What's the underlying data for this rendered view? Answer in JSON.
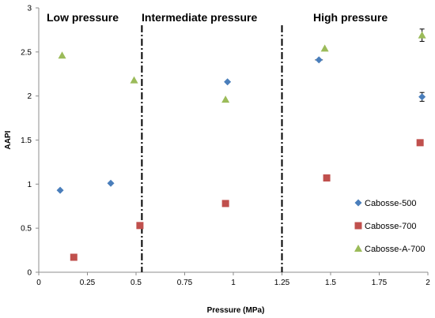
{
  "chart_data": {
    "type": "scatter",
    "xlabel": "Pressure (MPa)",
    "ylabel": "AAPI",
    "xlim": [
      0,
      2
    ],
    "ylim": [
      0,
      3
    ],
    "xticks": [
      "0",
      "0.25",
      "0.5",
      "0.75",
      "1",
      "1.25",
      "1.5",
      "1.75",
      "2"
    ],
    "yticks": [
      "0",
      "0.5",
      "1",
      "1.5",
      "2",
      "2.5",
      "3"
    ],
    "grid": false,
    "legend_position": "bottom-right",
    "region_labels": [
      "Low pressure",
      "Intermediate pressure",
      "High pressure"
    ],
    "region_boundaries": [
      0.53,
      1.25
    ],
    "series": [
      {
        "name": "Cabosse-500",
        "marker": "diamond",
        "color": "#4a7ebb",
        "points": [
          {
            "x": 0.11,
            "y": 0.93
          },
          {
            "x": 0.37,
            "y": 1.01
          },
          {
            "x": 0.97,
            "y": 2.16
          },
          {
            "x": 1.44,
            "y": 2.41,
            "xerr": 0.02
          },
          {
            "x": 1.97,
            "y": 1.99,
            "yerr": 0.05
          }
        ]
      },
      {
        "name": "Cabosse-700",
        "marker": "square",
        "color": "#c0504d",
        "points": [
          {
            "x": 0.18,
            "y": 0.17
          },
          {
            "x": 0.52,
            "y": 0.53
          },
          {
            "x": 0.96,
            "y": 0.78
          },
          {
            "x": 1.48,
            "y": 1.07
          },
          {
            "x": 1.96,
            "y": 1.47,
            "yerr": 0.02
          }
        ]
      },
      {
        "name": "Cabosse-A-700",
        "marker": "triangle",
        "color": "#9bbb59",
        "points": [
          {
            "x": 0.12,
            "y": 2.46
          },
          {
            "x": 0.49,
            "y": 2.18
          },
          {
            "x": 0.96,
            "y": 1.96
          },
          {
            "x": 1.47,
            "y": 2.54
          },
          {
            "x": 1.97,
            "y": 2.69,
            "yerr": 0.07
          }
        ]
      }
    ]
  }
}
